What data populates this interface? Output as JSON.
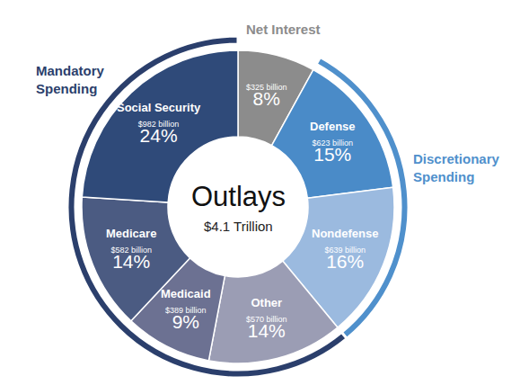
{
  "chart_data": {
    "type": "pie",
    "title": "Outlays",
    "subtitle": "$4.1 Trillion",
    "categories": [
      "Net Interest",
      "Defense",
      "Nondefense",
      "Other",
      "Medicaid",
      "Medicare",
      "Social Security"
    ],
    "values": [
      8,
      15,
      16,
      14,
      9,
      14,
      24
    ],
    "value_labels": [
      "8%",
      "15%",
      "16%",
      "14%",
      "9%",
      "14%",
      "24%"
    ],
    "amount_labels": [
      "$325 billion",
      "$623 billion",
      "$639 billion",
      "$570 billion",
      "$389 billion",
      "$582 billion",
      "$982 billion"
    ],
    "colors": [
      "#8c8c8c",
      "#4a8bc8",
      "#9bbadf",
      "#9b9db4",
      "#6c7192",
      "#4b5b82",
      "#2f4a79"
    ],
    "data_labels": true,
    "groups": [
      {
        "name": "Discretionary Spending",
        "categories": [
          "Defense",
          "Nondefense"
        ],
        "color": "#4f90cc"
      },
      {
        "name": "Mandatory Spending",
        "categories": [
          "Other",
          "Medicaid",
          "Medicare",
          "Social Security"
        ],
        "color": "#2b3f6c"
      }
    ]
  }
}
